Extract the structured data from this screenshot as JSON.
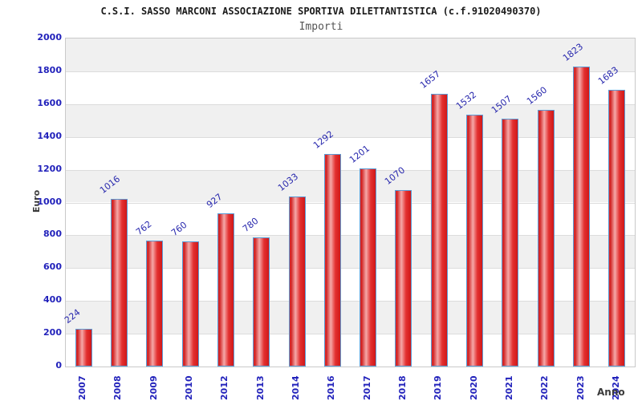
{
  "header": {
    "title": "C.S.I. SASSO MARCONI ASSOCIAZIONE SPORTIVA DILETTANTISTICA (c.f.91020490370)",
    "subtitle": "Importi"
  },
  "chart_data": {
    "type": "bar",
    "title": "C.S.I. SASSO MARCONI ASSOCIAZIONE SPORTIVA DILETTANTISTICA (c.f.91020490370)",
    "subtitle": "Importi",
    "xlabel": "Anno",
    "ylabel": "Euro",
    "categories": [
      "2007",
      "2008",
      "2009",
      "2010",
      "2012",
      "2013",
      "2014",
      "2016",
      "2017",
      "2018",
      "2019",
      "2020",
      "2021",
      "2022",
      "2023",
      "2024"
    ],
    "values": [
      224,
      1016,
      762,
      760,
      927,
      780,
      1033,
      1292,
      1201,
      1070,
      1657,
      1532,
      1507,
      1560,
      1823,
      1683
    ],
    "ylim": [
      0,
      2000
    ],
    "ytick_step": 200,
    "yticks": [
      0,
      200,
      400,
      600,
      800,
      1000,
      1200,
      1400,
      1600,
      1800,
      2000
    ],
    "grid": true,
    "band_fill": "alternating-200",
    "legend": "none",
    "colors": {
      "bar_main": "#d02020",
      "bar_highlight": "#f5a8a8",
      "bar_border": "#5b9bd5",
      "tick_text": "#2222bb",
      "value_label_text": "#2727ad",
      "band": "#f0f0f0",
      "gridline": "#dcdcdc",
      "plot_border": "#c9c9c9",
      "title_text": "#1a1a1a",
      "subtitle_text": "#555555",
      "axis_title_text": "#3a3a3a"
    }
  }
}
